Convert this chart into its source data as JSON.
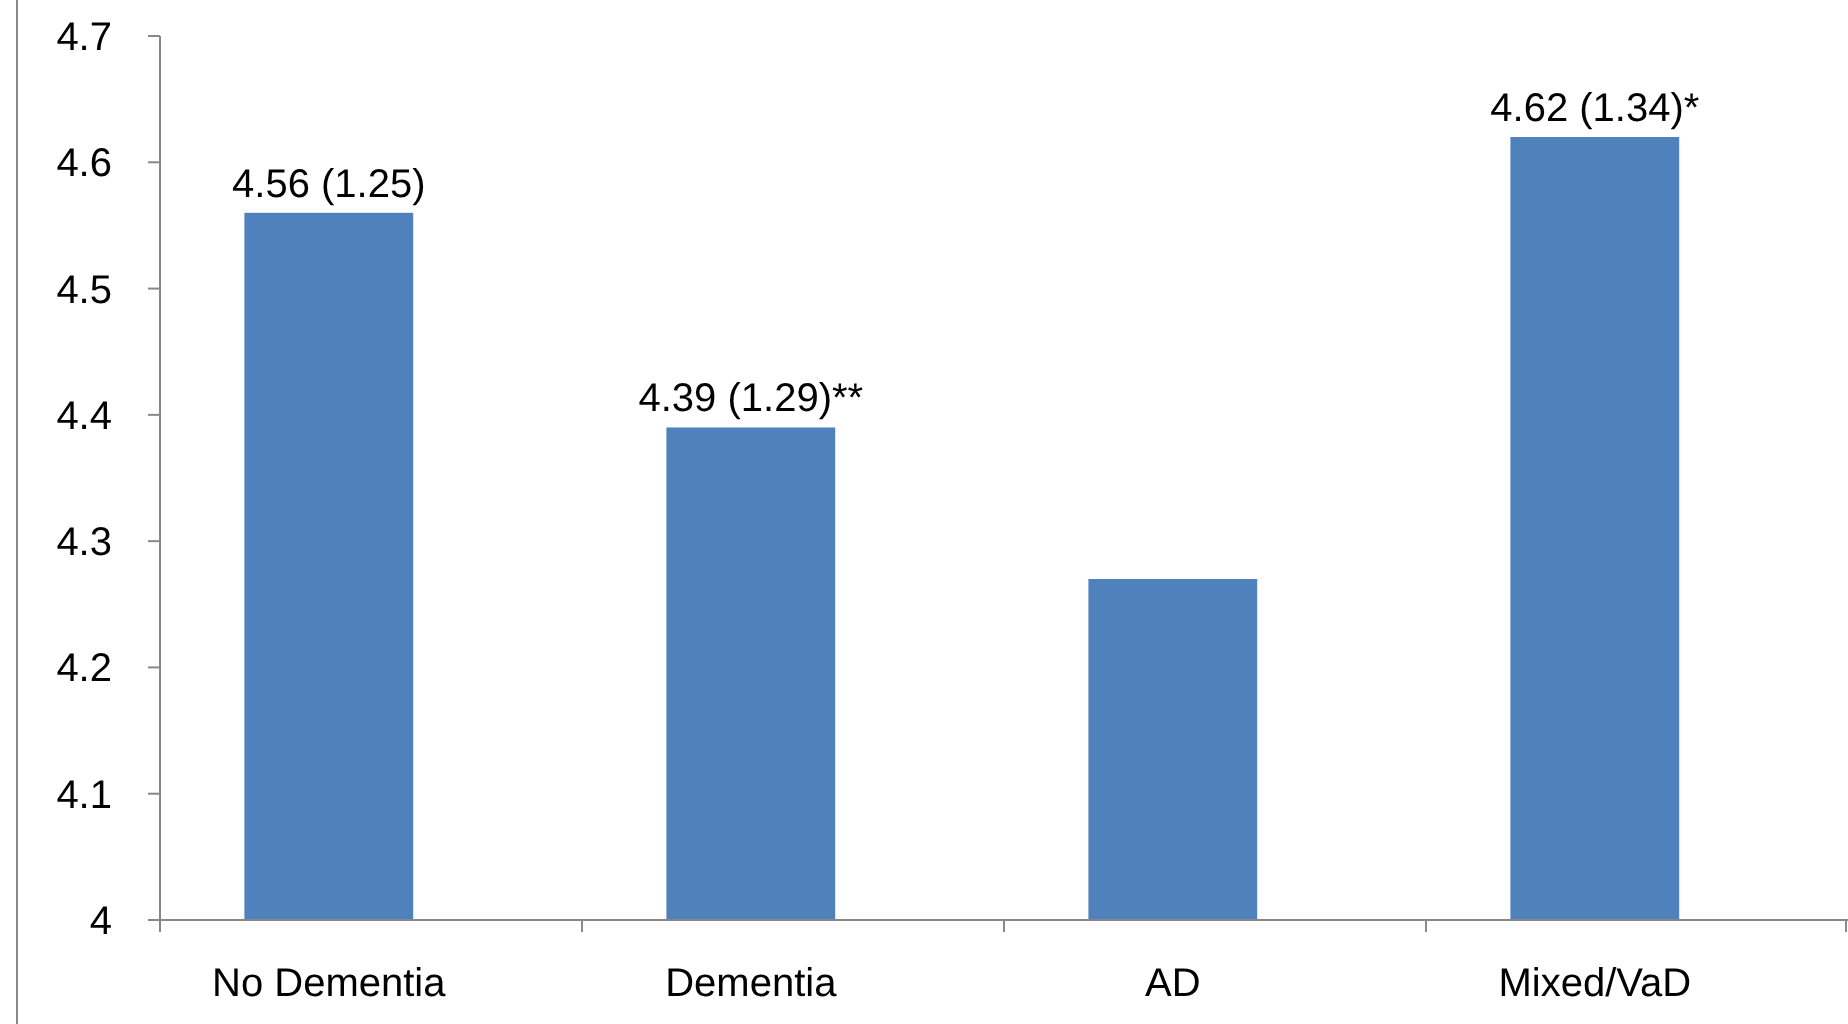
{
  "chart_data": {
    "type": "bar",
    "categories": [
      "No Dementia",
      "Dementia",
      "AD",
      "Mixed/VaD"
    ],
    "values": [
      4.56,
      4.39,
      4.27,
      4.62
    ],
    "color": "#4f81bd",
    "value_labels": [
      "4.56 (1.25)",
      "4.39 (1.29)**",
      null,
      "4.62 (1.34)*"
    ],
    "ylim": [
      4,
      4.7
    ],
    "yticks": [
      4,
      4.1,
      4.2,
      4.3,
      4.4,
      4.5,
      4.6,
      4.7
    ],
    "grid": false
  }
}
